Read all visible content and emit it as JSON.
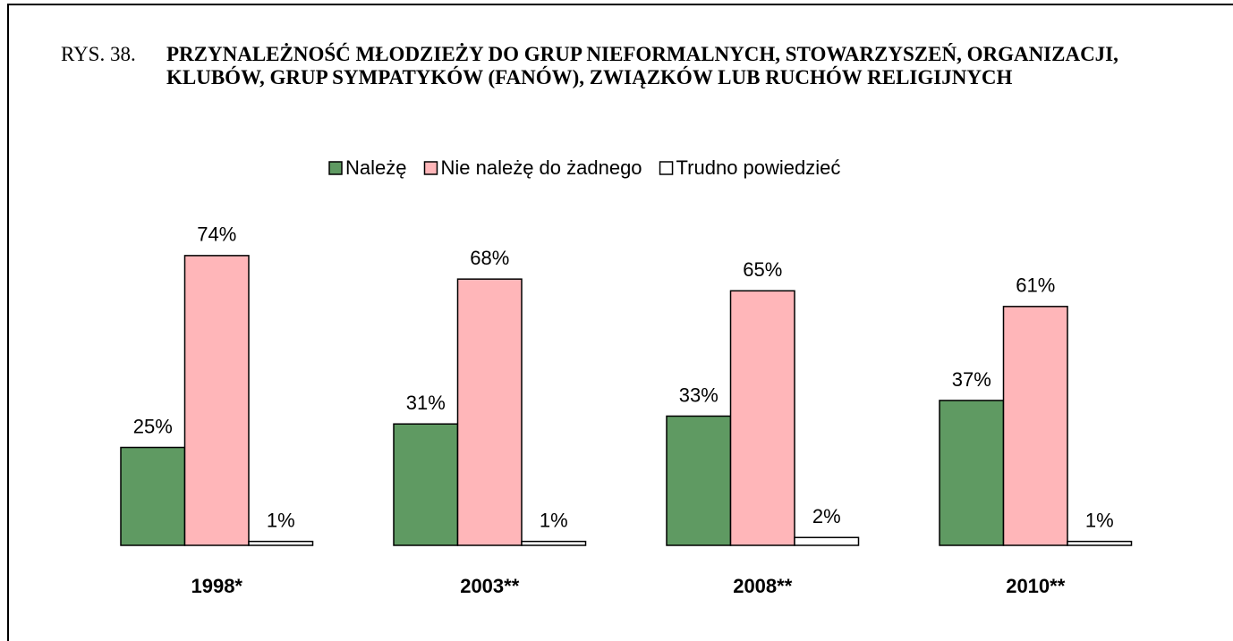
{
  "chart_data": {
    "type": "bar",
    "figure_label": "RYS. 38.",
    "title": "PRZYNALEŻNOŚĆ MŁODZIEŻY DO GRUP NIEFORMALNYCH, STOWARZYSZEŃ, ORGANIZACJI, KLUBÓW, GRUP SYMPATYKÓW (FANÓW), ZWIĄZKÓW LUB RUCHÓW RELIGIJNYCH",
    "categories": [
      "1998*",
      "2003**",
      "2008**",
      "2010**"
    ],
    "series": [
      {
        "name": "Należę",
        "color": "#5f9a62",
        "values": [
          25,
          31,
          33,
          37
        ],
        "value_labels": [
          "25%",
          "31%",
          "33%",
          "37%"
        ]
      },
      {
        "name": "Nie należę do żadnego",
        "color": "#ffb6b9",
        "values": [
          74,
          68,
          65,
          61
        ],
        "value_labels": [
          "74%",
          "68%",
          "65%",
          "61%"
        ]
      },
      {
        "name": "Trudno powiedzieć",
        "color": "#ffffff",
        "values": [
          1,
          1,
          2,
          1
        ],
        "value_labels": [
          "1%",
          "1%",
          "2%",
          "1%"
        ]
      }
    ],
    "legend": "top"
  }
}
